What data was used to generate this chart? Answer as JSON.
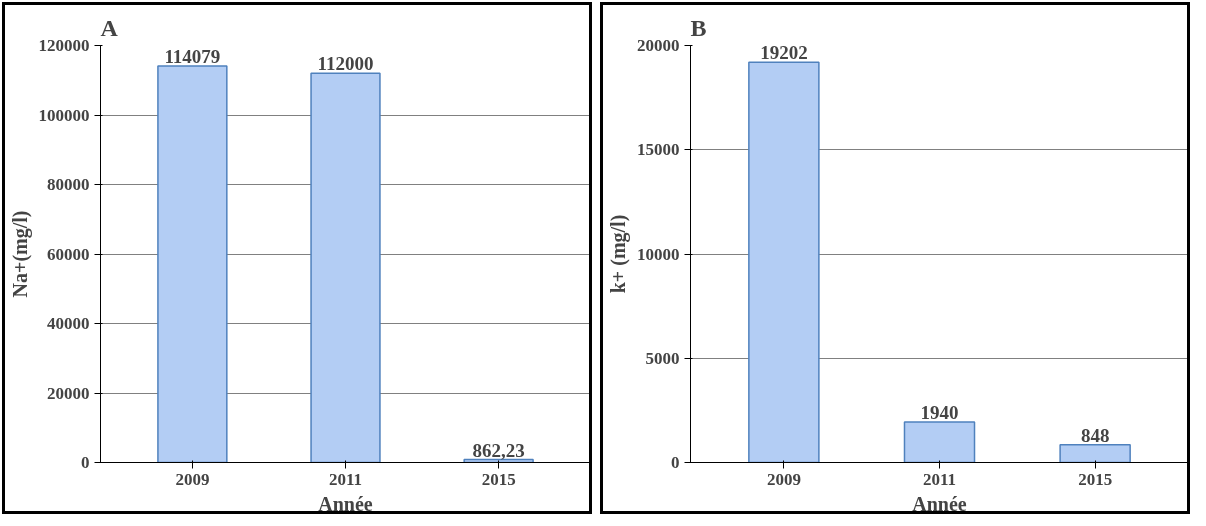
{
  "chart_data": [
    {
      "type": "bar",
      "title": "A",
      "xlabel": "Année",
      "ylabel": "Na+(mg/l)",
      "categories": [
        "2009",
        "2011",
        "2015"
      ],
      "values": [
        114079,
        112000,
        862.23
      ],
      "value_labels": [
        "114079",
        "112000",
        "862,23"
      ],
      "color": "#b3cdf4",
      "ylim": [
        0,
        120000
      ],
      "yticks": [
        0,
        20000,
        40000,
        60000,
        80000,
        100000,
        120000
      ],
      "grid": "y"
    },
    {
      "type": "bar",
      "title": "B",
      "xlabel": "Année",
      "ylabel": "k+ (mg/l)",
      "categories": [
        "2009",
        "2011",
        "2015"
      ],
      "values": [
        19202,
        1940,
        848
      ],
      "value_labels": [
        "19202",
        "1940",
        "848"
      ],
      "color": "#b3cdf4",
      "ylim": [
        0,
        20000
      ],
      "yticks": [
        0,
        5000,
        10000,
        15000,
        20000
      ],
      "grid": "y"
    }
  ]
}
